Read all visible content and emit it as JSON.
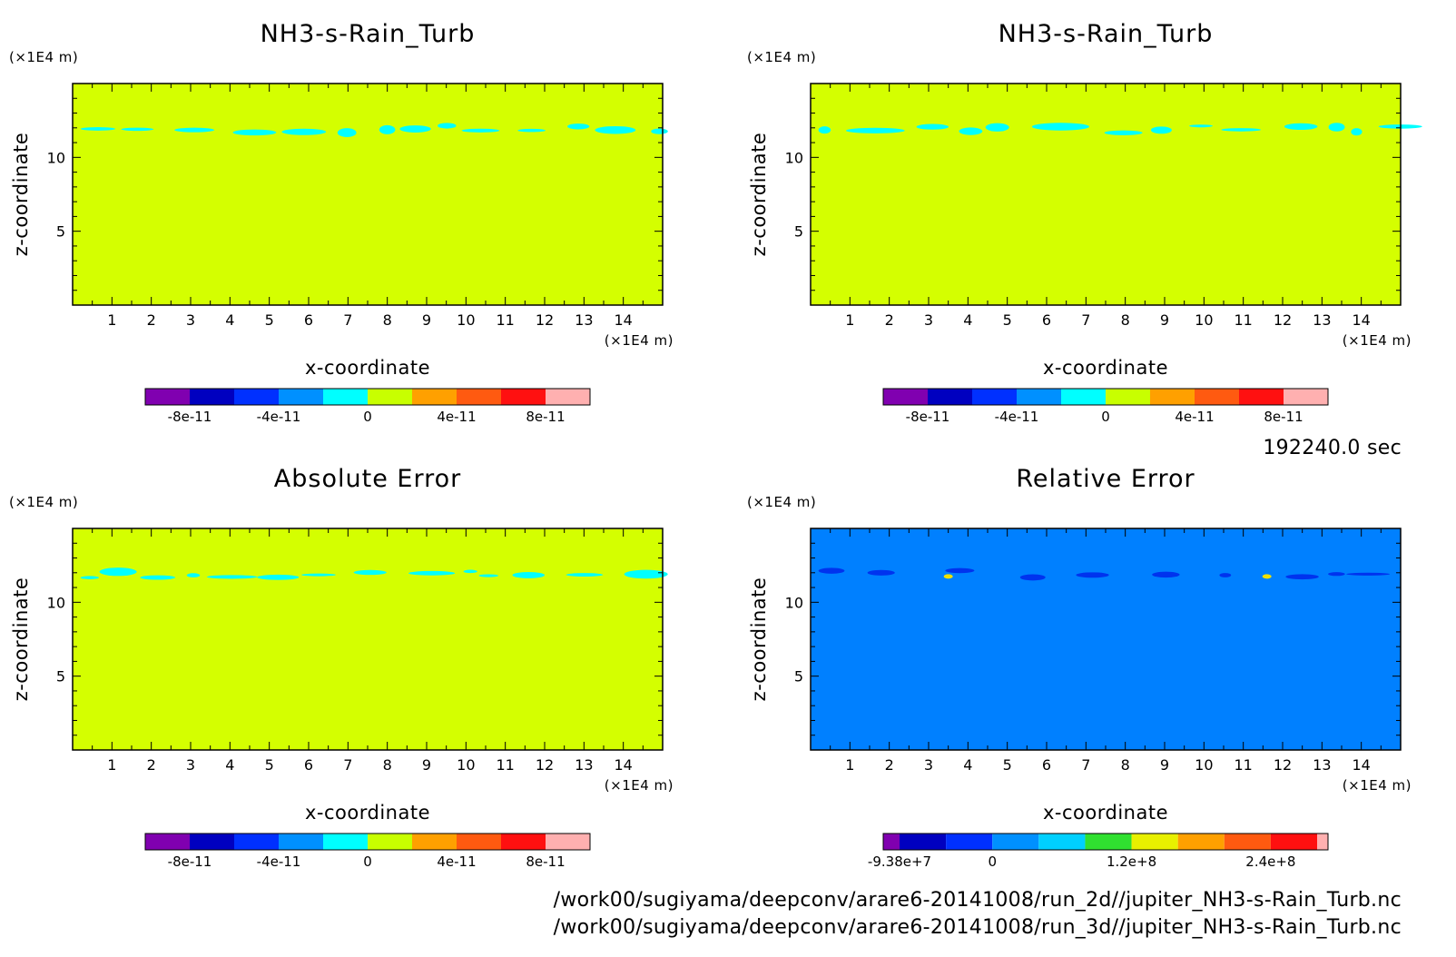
{
  "timestamp": "192240.0 sec",
  "footer": {
    "line1": "/work00/sugiyama/deepconv/arare6-20141008/run_2d//jupiter_NH3-s-Rain_Turb.nc",
    "line2": "/work00/sugiyama/deepconv/arare6-20141008/run_3d//jupiter_NH3-s-Rain_Turb.nc"
  },
  "colors": {
    "background_zero": "#d4ff00",
    "cloud_band": "#00ffff",
    "relative_background": "#0080ff",
    "relative_patches": "#0033ee",
    "relative_hotspot": "#f0e000",
    "colorbar_standard": [
      "#8000b0",
      "#0000c0",
      "#0030ff",
      "#0090ff",
      "#00ffff",
      "#c8ff00",
      "#ffa000",
      "#ff5a10",
      "#ff1010",
      "#ffb0b0"
    ],
    "colorbar_relative": [
      "#8000b0",
      "#0000c0",
      "#0030ff",
      "#0090ff",
      "#00d0ff",
      "#30e030",
      "#e8f000",
      "#ffa000",
      "#ff5a10",
      "#ff1010",
      "#ffb0b0"
    ]
  },
  "chart_data": [
    {
      "type": "heatmap",
      "title": "NH3-s-Rain_Turb",
      "xlabel": "x-coordinate",
      "ylabel": "z-coordinate",
      "x_unit": "(×1E4 m)",
      "z_unit": "(×1E4 m)",
      "xlim": [
        0,
        15
      ],
      "zlim": [
        0,
        15
      ],
      "x_ticks": [
        "1",
        "2",
        "3",
        "4",
        "5",
        "6",
        "7",
        "8",
        "9",
        "10",
        "11",
        "12",
        "13",
        "14"
      ],
      "z_ticks": [
        "5",
        "10"
      ],
      "field": "near zero everywhere; thin cyan band near z = 11.9",
      "colorbar_labels": [
        "-8e-11",
        "-4e-11",
        "0",
        "4e-11",
        "8e-11"
      ]
    },
    {
      "type": "heatmap",
      "title": "NH3-s-Rain_Turb",
      "xlabel": "x-coordinate",
      "ylabel": "z-coordinate",
      "x_unit": "(×1E4 m)",
      "z_unit": "(×1E4 m)",
      "xlim": [
        0,
        15
      ],
      "zlim": [
        0,
        15
      ],
      "x_ticks": [
        "1",
        "2",
        "3",
        "4",
        "5",
        "6",
        "7",
        "8",
        "9",
        "10",
        "11",
        "12",
        "13",
        "14"
      ],
      "z_ticks": [
        "5",
        "10"
      ],
      "field": "near zero everywhere; thin cyan band near z = 12",
      "colorbar_labels": [
        "-8e-11",
        "-4e-11",
        "0",
        "4e-11",
        "8e-11"
      ]
    },
    {
      "type": "heatmap",
      "title": "Absolute Error",
      "xlabel": "x-coordinate",
      "ylabel": "z-coordinate",
      "x_unit": "(×1E4 m)",
      "z_unit": "(×1E4 m)",
      "xlim": [
        0,
        15
      ],
      "zlim": [
        0,
        15
      ],
      "x_ticks": [
        "1",
        "2",
        "3",
        "4",
        "5",
        "6",
        "7",
        "8",
        "9",
        "10",
        "11",
        "12",
        "13",
        "14"
      ],
      "z_ticks": [
        "5",
        "10"
      ],
      "field": "near zero everywhere; cyan band near z = 12",
      "colorbar_labels": [
        "-8e-11",
        "-4e-11",
        "0",
        "4e-11",
        "8e-11"
      ]
    },
    {
      "type": "heatmap",
      "title": "Relative Error",
      "xlabel": "x-coordinate",
      "ylabel": "z-coordinate",
      "x_unit": "(×1E4 m)",
      "z_unit": "(×1E4 m)",
      "xlim": [
        0,
        15
      ],
      "zlim": [
        0,
        15
      ],
      "x_ticks": [
        "1",
        "2",
        "3",
        "4",
        "5",
        "6",
        "7",
        "8",
        "9",
        "10",
        "11",
        "12",
        "13",
        "14"
      ],
      "z_ticks": [
        "5",
        "10"
      ],
      "field": "mostly near 0 (blue); darker blue patches near z = 12; two small hotspots near x = 3.5 and x = 11.6",
      "colorbar_labels": [
        "-9.38e+7",
        "0",
        "1.2e+8",
        "2.4e+8"
      ]
    }
  ]
}
